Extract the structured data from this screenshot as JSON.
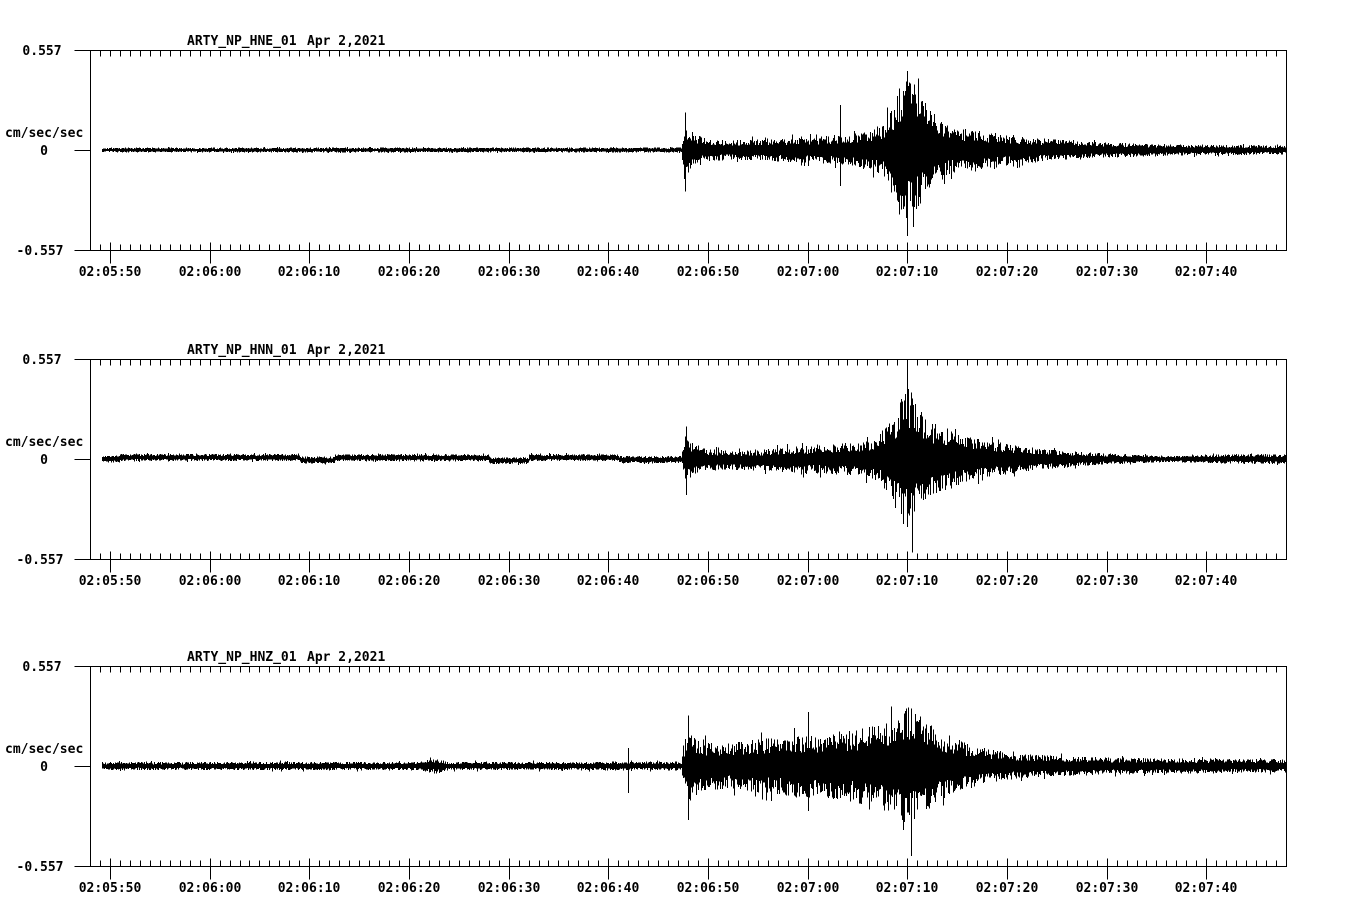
{
  "app": {
    "background_color": "#ffffff",
    "foreground_color": "#000000",
    "description": "Three-channel strong-motion seismogram display"
  },
  "chart_data": [
    {
      "type": "line",
      "kind": "seismogram-trace",
      "station_label": "ARTY_NP_HNE_01",
      "date_label": "Apr 2,2021",
      "ylabel": "cm/sec/sec",
      "ylim": [
        -0.557,
        0.557
      ],
      "ytick_values": [
        0.557,
        0,
        -0.557
      ],
      "ytick_labels": [
        "0.557",
        "0",
        "-0.557"
      ],
      "x_start_time": "02:05:48",
      "x_duration_s": 120,
      "x_major_tick_seconds": [
        2,
        12,
        22,
        32,
        42,
        52,
        62,
        72,
        82,
        92,
        102,
        112
      ],
      "x_major_tick_labels": [
        "02:05:50",
        "02:06:00",
        "02:06:10",
        "02:06:20",
        "02:06:30",
        "02:06:40",
        "02:06:50",
        "02:07:00",
        "02:07:10",
        "02:07:20",
        "02:07:30",
        "02:07:40"
      ],
      "x_minor_tick_interval_s": 1,
      "trace_start_s": 1.2,
      "noise_seed": 101,
      "envelope_t_amp": [
        [
          1.2,
          0.016
        ],
        [
          30,
          0.017
        ],
        [
          55,
          0.017
        ],
        [
          59.3,
          0.017
        ],
        [
          59.6,
          0.19
        ],
        [
          60.2,
          0.13
        ],
        [
          61.5,
          0.08
        ],
        [
          64,
          0.065
        ],
        [
          68,
          0.075
        ],
        [
          72,
          0.085
        ],
        [
          76,
          0.1
        ],
        [
          78,
          0.13
        ],
        [
          79.5,
          0.17
        ],
        [
          80.5,
          0.3
        ],
        [
          81.3,
          0.45
        ],
        [
          82.3,
          0.47
        ],
        [
          83.3,
          0.36
        ],
        [
          84.5,
          0.26
        ],
        [
          86,
          0.16
        ],
        [
          88,
          0.14
        ],
        [
          91,
          0.11
        ],
        [
          95,
          0.08
        ],
        [
          100,
          0.055
        ],
        [
          106,
          0.042
        ],
        [
          112,
          0.035
        ],
        [
          120,
          0.03
        ]
      ],
      "baseline_offsets": [],
      "spikes_t_up_down": [
        [
          59.7,
          0.21,
          0.23
        ],
        [
          75.3,
          0.25,
          0.2
        ],
        [
          82.0,
          0.44,
          0.48
        ]
      ]
    },
    {
      "type": "line",
      "kind": "seismogram-trace",
      "station_label": "ARTY_NP_HNN_01",
      "date_label": "Apr 2,2021",
      "ylabel": "cm/sec/sec",
      "ylim": [
        -0.557,
        0.557
      ],
      "ytick_values": [
        0.557,
        0,
        -0.557
      ],
      "ytick_labels": [
        "0.557",
        "0",
        "-0.557"
      ],
      "x_start_time": "02:05:48",
      "x_duration_s": 120,
      "x_major_tick_seconds": [
        2,
        12,
        22,
        32,
        42,
        52,
        62,
        72,
        82,
        92,
        102,
        112
      ],
      "x_major_tick_labels": [
        "02:05:50",
        "02:06:00",
        "02:06:10",
        "02:06:20",
        "02:06:30",
        "02:06:40",
        "02:06:50",
        "02:07:00",
        "02:07:10",
        "02:07:20",
        "02:07:30",
        "02:07:40"
      ],
      "x_minor_tick_interval_s": 1,
      "trace_start_s": 1.2,
      "noise_seed": 202,
      "envelope_t_amp": [
        [
          1.2,
          0.024
        ],
        [
          59.3,
          0.024
        ],
        [
          59.7,
          0.16
        ],
        [
          60.5,
          0.1
        ],
        [
          62,
          0.07
        ],
        [
          65,
          0.065
        ],
        [
          68,
          0.075
        ],
        [
          71,
          0.09
        ],
        [
          74,
          0.1
        ],
        [
          77,
          0.11
        ],
        [
          79,
          0.15
        ],
        [
          80.5,
          0.28
        ],
        [
          81.5,
          0.43
        ],
        [
          82.2,
          0.47
        ],
        [
          83,
          0.34
        ],
        [
          84,
          0.26
        ],
        [
          86,
          0.2
        ],
        [
          88,
          0.15
        ],
        [
          91,
          0.11
        ],
        [
          94,
          0.08
        ],
        [
          97,
          0.06
        ],
        [
          100,
          0.045
        ],
        [
          103,
          0.033
        ],
        [
          107,
          0.024
        ],
        [
          110,
          0.022
        ],
        [
          113,
          0.03
        ],
        [
          116,
          0.034
        ],
        [
          120,
          0.03
        ]
      ],
      "baseline_offsets": [
        [
          3,
          21,
          0.009
        ],
        [
          21,
          24.5,
          -0.006
        ],
        [
          24.5,
          40,
          0.007
        ],
        [
          40,
          44,
          -0.009
        ],
        [
          44,
          53,
          0.008
        ],
        [
          53,
          59.3,
          -0.003
        ],
        [
          62,
          72,
          -0.006
        ]
      ],
      "spikes_t_up_down": [
        [
          59.8,
          0.18,
          0.2
        ],
        [
          82.0,
          0.52,
          0.38
        ],
        [
          82.5,
          0.3,
          0.52
        ]
      ]
    },
    {
      "type": "line",
      "kind": "seismogram-trace",
      "station_label": "ARTY_NP_HNZ_01",
      "date_label": "Apr 2,2021",
      "ylabel": "cm/sec/sec",
      "ylim": [
        -0.557,
        0.557
      ],
      "ytick_values": [
        0.557,
        0,
        -0.557
      ],
      "ytick_labels": [
        "0.557",
        "0",
        "-0.557"
      ],
      "x_start_time": "02:05:48",
      "x_duration_s": 120,
      "x_major_tick_seconds": [
        2,
        12,
        22,
        32,
        42,
        52,
        62,
        72,
        82,
        92,
        102,
        112
      ],
      "x_major_tick_labels": [
        "02:05:50",
        "02:06:00",
        "02:06:10",
        "02:06:20",
        "02:06:30",
        "02:06:40",
        "02:06:50",
        "02:07:00",
        "02:07:10",
        "02:07:20",
        "02:07:30",
        "02:07:40"
      ],
      "x_minor_tick_interval_s": 1,
      "trace_start_s": 1.2,
      "noise_seed": 303,
      "envelope_t_amp": [
        [
          1.2,
          0.027
        ],
        [
          20,
          0.028
        ],
        [
          33,
          0.028
        ],
        [
          34.6,
          0.052
        ],
        [
          36,
          0.028
        ],
        [
          50,
          0.028
        ],
        [
          59.3,
          0.03
        ],
        [
          59.9,
          0.27
        ],
        [
          60.8,
          0.2
        ],
        [
          62,
          0.16
        ],
        [
          64,
          0.15
        ],
        [
          66,
          0.17
        ],
        [
          69,
          0.19
        ],
        [
          72,
          0.21
        ],
        [
          75,
          0.22
        ],
        [
          78,
          0.26
        ],
        [
          80,
          0.3
        ],
        [
          81.5,
          0.36
        ],
        [
          82.3,
          0.4
        ],
        [
          83.5,
          0.31
        ],
        [
          85,
          0.24
        ],
        [
          87,
          0.18
        ],
        [
          89,
          0.13
        ],
        [
          91,
          0.1
        ],
        [
          94,
          0.08
        ],
        [
          98,
          0.065
        ],
        [
          103,
          0.055
        ],
        [
          109,
          0.05
        ],
        [
          115,
          0.046
        ],
        [
          120,
          0.045
        ]
      ],
      "baseline_offsets": [],
      "spikes_t_up_down": [
        [
          54.0,
          0.1,
          0.15
        ],
        [
          59.95,
          0.28,
          0.3
        ],
        [
          72.0,
          0.3,
          0.25
        ],
        [
          82.4,
          0.32,
          0.5
        ]
      ]
    }
  ]
}
